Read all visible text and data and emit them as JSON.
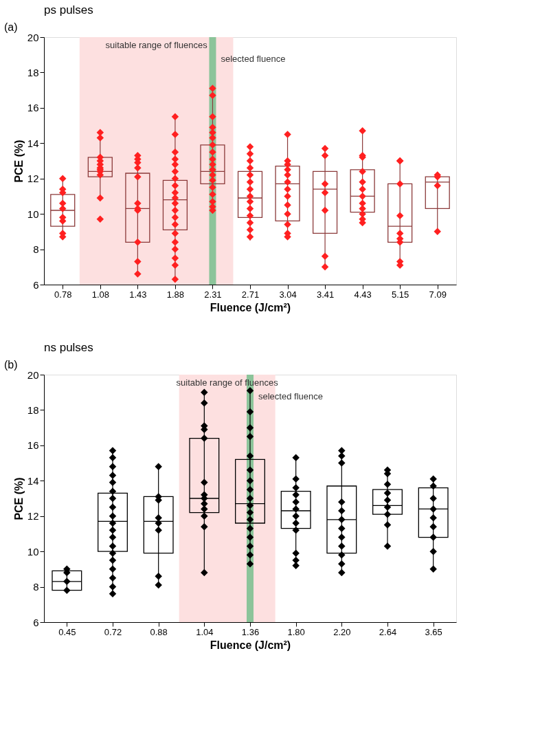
{
  "chart_data": [
    {
      "type": "box",
      "title": "ps pulses",
      "xlabel": "Fluence (J/cm²)",
      "ylabel": "PCE (%)",
      "annotations": [
        "(a)"
      ],
      "categories": [
        "0.78",
        "1.08",
        "1.43",
        "1.88",
        "2.31",
        "2.71",
        "3.04",
        "3.41",
        "4.43",
        "5.15",
        "7.09"
      ],
      "ylim": [
        6,
        20
      ],
      "yticks": [
        6,
        8,
        10,
        12,
        14,
        16,
        18,
        20
      ],
      "grid": false,
      "marker": "diamond",
      "bands": [
        {
          "axis": "x",
          "from": "1.08",
          "to": "2.31",
          "label": "suitable range of fluences",
          "color": "#fde0e0"
        }
      ],
      "ref_lines": [
        {
          "axis": "x",
          "value": "2.31",
          "label": "selected fluence",
          "color": "#8cc49a"
        }
      ],
      "series": [
        {
          "type": "box",
          "color": "#8b3a3a",
          "boxes": [
            {
              "low": 8.7,
              "q1": 9.3,
              "median": 10.2,
              "q3": 11.1,
              "high": 12.0
            },
            {
              "low": 10.8,
              "q1": 12.1,
              "median": 12.4,
              "q3": 13.2,
              "high": 14.6
            },
            {
              "low": 6.6,
              "q1": 8.4,
              "median": 10.3,
              "q3": 12.3,
              "high": 13.3
            },
            {
              "low": 6.3,
              "q1": 9.1,
              "median": 10.8,
              "q3": 11.9,
              "high": 15.5
            },
            {
              "low": 10.2,
              "q1": 11.7,
              "median": 12.4,
              "q3": 13.9,
              "high": 17.1
            },
            {
              "low": 8.5,
              "q1": 9.8,
              "median": 10.9,
              "q3": 12.4,
              "high": 13.8
            },
            {
              "low": 8.7,
              "q1": 9.6,
              "median": 11.7,
              "q3": 12.7,
              "high": 14.5
            },
            {
              "low": 7.0,
              "q1": 8.9,
              "median": 11.4,
              "q3": 12.4,
              "high": 13.7
            },
            {
              "low": 9.5,
              "q1": 10.1,
              "median": 11.0,
              "q3": 12.5,
              "high": 14.7
            },
            {
              "low": 7.2,
              "q1": 8.4,
              "median": 9.3,
              "q3": 11.7,
              "high": 13.0
            },
            {
              "low": 9.0,
              "q1": 10.3,
              "median": 11.8,
              "q3": 12.1,
              "high": 12.1
            }
          ]
        },
        {
          "type": "scatter",
          "color": "#ff2020",
          "x": [
            "0.78",
            "0.78",
            "0.78",
            "0.78",
            "0.78",
            "0.78",
            "0.78",
            "0.78",
            "0.78",
            "1.08",
            "1.08",
            "1.08",
            "1.08",
            "1.08",
            "1.08",
            "1.08",
            "1.08",
            "1.08",
            "1.08",
            "1.08",
            "1.43",
            "1.43",
            "1.43",
            "1.43",
            "1.43",
            "1.43",
            "1.43",
            "1.43",
            "1.43",
            "1.43",
            "1.43",
            "1.88",
            "1.88",
            "1.88",
            "1.88",
            "1.88",
            "1.88",
            "1.88",
            "1.88",
            "1.88",
            "1.88",
            "1.88",
            "1.88",
            "1.88",
            "1.88",
            "1.88",
            "1.88",
            "1.88",
            "1.88",
            "1.88",
            "1.88",
            "2.31",
            "2.31",
            "2.31",
            "2.31",
            "2.31",
            "2.31",
            "2.31",
            "2.31",
            "2.31",
            "2.31",
            "2.31",
            "2.31",
            "2.31",
            "2.31",
            "2.31",
            "2.31",
            "2.31",
            "2.31",
            "2.71",
            "2.71",
            "2.71",
            "2.71",
            "2.71",
            "2.71",
            "2.71",
            "2.71",
            "2.71",
            "2.71",
            "2.71",
            "2.71",
            "2.71",
            "2.71",
            "3.04",
            "3.04",
            "3.04",
            "3.04",
            "3.04",
            "3.04",
            "3.04",
            "3.04",
            "3.04",
            "3.04",
            "3.04",
            "3.04",
            "3.04",
            "3.41",
            "3.41",
            "3.41",
            "3.41",
            "3.41",
            "3.41",
            "3.41",
            "4.43",
            "4.43",
            "4.43",
            "4.43",
            "4.43",
            "4.43",
            "4.43",
            "4.43",
            "4.43",
            "4.43",
            "4.43",
            "4.43",
            "5.15",
            "5.15",
            "5.15",
            "5.15",
            "5.15",
            "5.15",
            "5.15",
            "5.15",
            "5.15",
            "7.09",
            "7.09",
            "7.09",
            "7.09"
          ],
          "values": [
            12.0,
            11.4,
            11.2,
            10.6,
            10.3,
            9.8,
            9.6,
            8.9,
            8.7,
            14.6,
            14.3,
            13.2,
            13.0,
            12.8,
            12.6,
            12.5,
            12.4,
            12.2,
            10.9,
            9.7,
            13.3,
            13.1,
            12.9,
            12.6,
            12.1,
            10.6,
            10.3,
            10.2,
            8.4,
            7.3,
            6.6,
            15.5,
            14.5,
            13.5,
            13.1,
            12.8,
            12.4,
            12.0,
            11.6,
            11.2,
            10.9,
            10.6,
            10.2,
            9.8,
            9.4,
            8.9,
            8.4,
            8.0,
            7.5,
            7.1,
            6.3,
            17.1,
            16.7,
            15.5,
            14.9,
            14.6,
            14.3,
            13.9,
            13.5,
            13.1,
            12.8,
            12.5,
            12.2,
            11.9,
            11.5,
            11.1,
            10.7,
            10.4,
            10.2,
            13.8,
            13.4,
            13.0,
            12.6,
            12.2,
            11.8,
            11.4,
            11.0,
            10.7,
            10.3,
            9.9,
            9.5,
            9.1,
            8.7,
            14.5,
            13.0,
            12.8,
            12.5,
            12.2,
            11.8,
            11.4,
            11.0,
            10.5,
            10.0,
            9.4,
            8.9,
            8.7,
            13.7,
            13.3,
            11.7,
            11.2,
            10.2,
            7.6,
            7.0,
            14.7,
            13.3,
            13.2,
            12.4,
            11.8,
            11.4,
            11.0,
            10.6,
            10.3,
            10.0,
            9.7,
            9.5,
            13.0,
            13.0,
            11.7,
            9.9,
            8.9,
            8.6,
            8.4,
            7.3,
            7.1,
            12.2,
            12.1,
            11.6,
            9.0
          ]
        }
      ]
    },
    {
      "type": "box",
      "title": "ns pulses",
      "xlabel": "Fluence (J/cm²)",
      "ylabel": "PCE (%)",
      "annotations": [
        "(b)"
      ],
      "categories": [
        "0.45",
        "0.72",
        "0.88",
        "1.04",
        "1.36",
        "1.80",
        "2.20",
        "2.64",
        "3.65"
      ],
      "ylim": [
        6,
        20
      ],
      "yticks": [
        6,
        8,
        10,
        12,
        14,
        16,
        18,
        20
      ],
      "grid": false,
      "marker": "diamond",
      "bands": [
        {
          "axis": "x",
          "from": "1.04",
          "to": "1.36",
          "label": "suitable range of fluences",
          "color": "#fde0e0"
        }
      ],
      "ref_lines": [
        {
          "axis": "x",
          "value": "1.36",
          "label": "selected fluence",
          "color": "#8cc49a"
        }
      ],
      "series": [
        {
          "type": "box",
          "color": "#000000",
          "boxes": [
            {
              "low": 7.8,
              "q1": 7.8,
              "median": 8.3,
              "q3": 8.9,
              "high": 9.0
            },
            {
              "low": 7.6,
              "q1": 10.0,
              "median": 11.7,
              "q3": 13.3,
              "high": 15.7
            },
            {
              "low": 8.0,
              "q1": 9.9,
              "median": 11.7,
              "q3": 13.1,
              "high": 14.8
            },
            {
              "low": 8.8,
              "q1": 12.2,
              "median": 13.0,
              "q3": 16.4,
              "high": 19.0
            },
            {
              "low": 9.3,
              "q1": 11.6,
              "median": 12.7,
              "q3": 15.2,
              "high": 19.1
            },
            {
              "low": 9.2,
              "q1": 11.3,
              "median": 12.3,
              "q3": 13.4,
              "high": 15.3
            },
            {
              "low": 8.7,
              "q1": 9.9,
              "median": 11.8,
              "q3": 13.7,
              "high": 15.7
            },
            {
              "low": 10.2,
              "q1": 12.1,
              "median": 12.6,
              "q3": 13.5,
              "high": 14.6
            },
            {
              "low": 8.9,
              "q1": 10.8,
              "median": 12.4,
              "q3": 13.6,
              "high": 14.2
            }
          ]
        },
        {
          "type": "scatter",
          "color": "#000000",
          "x": [
            "0.45",
            "0.45",
            "0.45",
            "0.45",
            "0.72",
            "0.72",
            "0.72",
            "0.72",
            "0.72",
            "0.72",
            "0.72",
            "0.72",
            "0.72",
            "0.72",
            "0.72",
            "0.72",
            "0.72",
            "0.72",
            "0.72",
            "0.72",
            "0.72",
            "0.72",
            "0.72",
            "0.88",
            "0.88",
            "0.88",
            "0.88",
            "0.88",
            "0.88",
            "0.88",
            "0.88",
            "1.04",
            "1.04",
            "1.04",
            "1.04",
            "1.04",
            "1.04",
            "1.04",
            "1.04",
            "1.04",
            "1.04",
            "1.04",
            "1.04",
            "1.04",
            "1.36",
            "1.36",
            "1.36",
            "1.36",
            "1.36",
            "1.36",
            "1.36",
            "1.36",
            "1.36",
            "1.36",
            "1.36",
            "1.36",
            "1.36",
            "1.36",
            "1.36",
            "1.36",
            "1.36",
            "1.80",
            "1.80",
            "1.80",
            "1.80",
            "1.80",
            "1.80",
            "1.80",
            "1.80",
            "1.80",
            "1.80",
            "1.80",
            "1.80",
            "2.20",
            "2.20",
            "2.20",
            "2.20",
            "2.20",
            "2.20",
            "2.20",
            "2.20",
            "2.20",
            "2.20",
            "2.20",
            "2.20",
            "2.64",
            "2.64",
            "2.64",
            "2.64",
            "2.64",
            "2.64",
            "2.64",
            "2.64",
            "2.64",
            "3.65",
            "3.65",
            "3.65",
            "3.65",
            "3.65",
            "3.65",
            "3.65",
            "3.65",
            "3.65"
          ],
          "values": [
            9.0,
            8.8,
            8.3,
            7.8,
            15.7,
            15.3,
            14.8,
            14.3,
            13.9,
            13.4,
            13.0,
            12.5,
            12.0,
            11.6,
            11.2,
            10.8,
            10.3,
            9.9,
            9.5,
            9.0,
            8.5,
            8.0,
            7.6,
            14.8,
            13.1,
            12.9,
            11.9,
            11.6,
            11.2,
            8.6,
            8.1,
            19.0,
            18.4,
            17.1,
            16.9,
            16.4,
            13.9,
            13.2,
            13.0,
            12.7,
            12.4,
            12.0,
            11.4,
            8.8,
            19.1,
            17.9,
            17.0,
            16.5,
            15.4,
            14.6,
            14.0,
            13.5,
            13.0,
            12.6,
            12.2,
            11.8,
            11.3,
            10.8,
            10.3,
            9.8,
            9.3,
            15.3,
            14.1,
            13.6,
            13.2,
            12.8,
            12.4,
            12.0,
            11.6,
            11.2,
            9.9,
            9.5,
            9.2,
            15.7,
            15.4,
            15.0,
            12.8,
            12.3,
            11.8,
            11.3,
            10.8,
            10.3,
            9.8,
            9.3,
            8.8,
            14.6,
            14.4,
            13.8,
            13.3,
            12.9,
            12.5,
            12.1,
            11.5,
            10.3,
            14.1,
            13.7,
            13.0,
            12.4,
            11.9,
            11.4,
            10.8,
            10.0,
            9.0
          ]
        }
      ]
    }
  ]
}
